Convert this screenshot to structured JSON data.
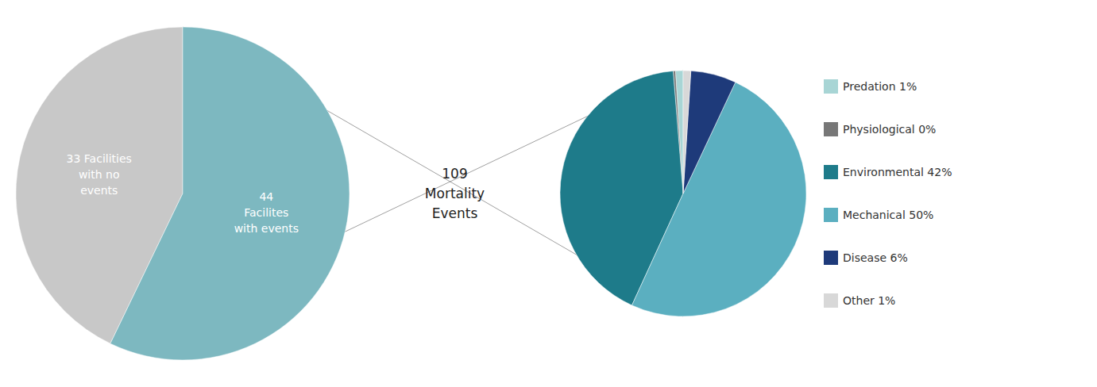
{
  "chart_data": [
    {
      "type": "pie",
      "values": [
        33,
        44
      ],
      "value_labels": [
        "33 Facilities\nwith no\nevents",
        "44\nFacilites\nwith events"
      ],
      "colors": [
        "#c8c8c8",
        "#7db8c0"
      ],
      "data_labels": true,
      "annotations": [
        "109\nMortality\nEvents"
      ]
    },
    {
      "type": "pie",
      "categories": [
        "Predation 1%",
        "Physiological 0%",
        "Environmental 42%",
        "Mechanical 50%",
        "Disease 6%",
        "Other 1%"
      ],
      "values": [
        1,
        0.3,
        42,
        50,
        6,
        1
      ],
      "colors": [
        "#a8d5d5",
        "#777777",
        "#1e7b8a",
        "#5bafc0",
        "#1e3a7a",
        "#d8d8d8"
      ],
      "legend": "right",
      "data_labels": false
    }
  ]
}
